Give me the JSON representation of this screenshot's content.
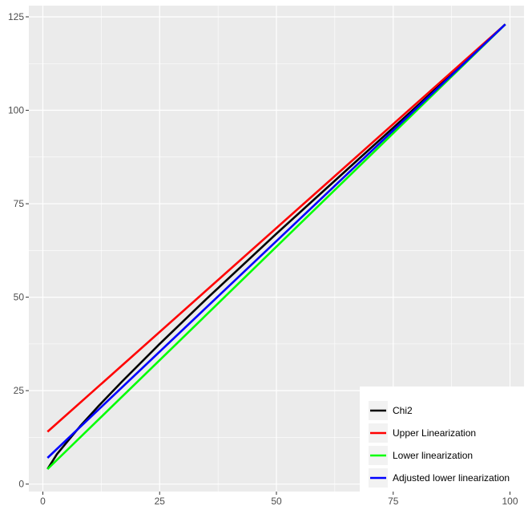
{
  "chart_data": {
    "type": "line",
    "title": "",
    "xlabel": "",
    "ylabel": "",
    "xlim": [
      -3,
      103
    ],
    "ylim": [
      -2,
      128
    ],
    "x_ticks": [
      0,
      25,
      50,
      75,
      100
    ],
    "x_tick_labels": [
      "0",
      "25",
      "50",
      "75",
      "100"
    ],
    "y_ticks": [
      0,
      25,
      50,
      75,
      100,
      125
    ],
    "y_tick_labels": [
      "0",
      "25",
      "50",
      "75",
      "100",
      "125"
    ],
    "grid": true,
    "legend_position": "bottom-right",
    "series": [
      {
        "name": "Chi2",
        "color": "#000000",
        "x": [
          1,
          2,
          3,
          5,
          8,
          12,
          17,
          25,
          35,
          50,
          65,
          80,
          99
        ],
        "y": [
          4,
          6,
          8,
          11,
          15.5,
          21,
          27.5,
          37.5,
          49.5,
          67,
          84,
          101,
          123
        ]
      },
      {
        "name": "Upper Linearization",
        "color": "#ff0000",
        "x": [
          1,
          99
        ],
        "y": [
          14,
          123
        ]
      },
      {
        "name": "Lower linearization",
        "color": "#00ff00",
        "x": [
          1,
          99
        ],
        "y": [
          4,
          123
        ]
      },
      {
        "name": "Adjusted lower linearization",
        "color": "#0000ff",
        "x": [
          1,
          99
        ],
        "y": [
          7,
          123
        ]
      }
    ]
  }
}
